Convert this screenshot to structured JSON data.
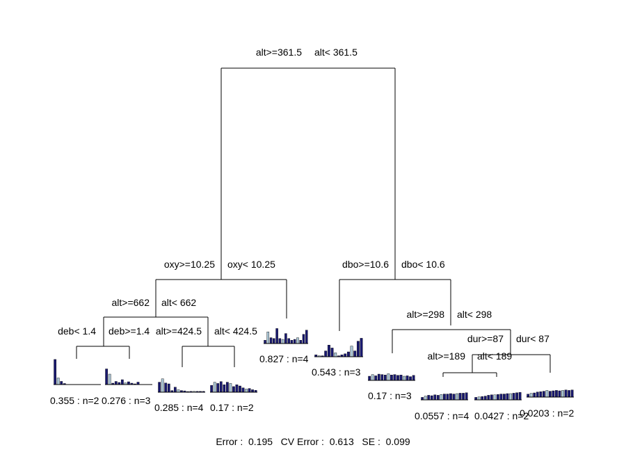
{
  "colors": {
    "bar": "#191970",
    "bar_light": "#a9c4d4",
    "baseline": "#000000"
  },
  "tree": {
    "splits": [
      {
        "id": "root",
        "left_label": "alt>=361.5",
        "right_label": "alt< 361.5"
      },
      {
        "id": "n2",
        "left_label": "oxy>=10.25",
        "right_label": "oxy< 10.25"
      },
      {
        "id": "n3",
        "left_label": "dbo>=10.6",
        "right_label": "dbo< 10.6"
      },
      {
        "id": "n4",
        "left_label": "alt>=662",
        "right_label": "alt< 662"
      },
      {
        "id": "n8",
        "left_label": "deb< 1.4",
        "right_label": "deb>=1.4"
      },
      {
        "id": "n9",
        "left_label": "alt>=424.5",
        "right_label": "alt< 424.5"
      },
      {
        "id": "n7",
        "left_label": "alt>=298",
        "right_label": "alt< 298"
      },
      {
        "id": "n15",
        "left_label": "dur>=87",
        "right_label": "dur< 87"
      },
      {
        "id": "n30",
        "left_label": "alt>=189",
        "right_label": "alt< 189"
      }
    ],
    "leaves": [
      {
        "id": "leaf1",
        "label": "0.355 : n=2",
        "bars": [
          0.95,
          0.25,
          0.12,
          0.04,
          0,
          0,
          0,
          0,
          0,
          0,
          0,
          0,
          0,
          0,
          0
        ]
      },
      {
        "id": "leaf2",
        "label": "0.276 : n=3",
        "bars": [
          0.9,
          0.6,
          0.08,
          0.18,
          0.12,
          0.28,
          0.1,
          0.16,
          0.08,
          0.04,
          0.14,
          0,
          0,
          0,
          0
        ]
      },
      {
        "id": "leaf3",
        "label": "0.285 : n=4",
        "bars": [
          0.6,
          0.8,
          0.55,
          0.5,
          0.1,
          0.3,
          0.15,
          0.1,
          0.08,
          0.04,
          0.05,
          0.05,
          0.05,
          0.05,
          0.05
        ]
      },
      {
        "id": "leaf4",
        "label": "0.17 : n=2",
        "bars": [
          0.55,
          0.8,
          0.7,
          0.85,
          0.6,
          0.8,
          0.7,
          0.45,
          0.6,
          0.5,
          0.35,
          0.25,
          0.3,
          0.2,
          0.15
        ]
      },
      {
        "id": "leaf5",
        "label": "0.827 : n=4",
        "bars": [
          0.2,
          0.7,
          0.35,
          0.3,
          0.9,
          0.3,
          0.25,
          0.6,
          0.3,
          0.2,
          0.25,
          0.35,
          0.2,
          0.55,
          0.8
        ]
      },
      {
        "id": "leaf6",
        "label": "0.543 : n=3",
        "bars": [
          0.1,
          0.05,
          0.05,
          0.3,
          0.6,
          0.45,
          0.2,
          0.05,
          0.1,
          0.15,
          0.25,
          0.55,
          0.3,
          0.8,
          0.95
        ]
      },
      {
        "id": "leaf7",
        "label": "0.17 : n=3",
        "bars": [
          0.5,
          0.7,
          0.55,
          0.75,
          0.7,
          0.65,
          0.8,
          0.65,
          0.7,
          0.6,
          0.65,
          0.5,
          0.55,
          0.45,
          0.6
        ]
      },
      {
        "id": "leaf8",
        "label": "0.0557 : n=4",
        "bars": [
          0.3,
          0.45,
          0.55,
          0.5,
          0.6,
          0.55,
          0.65,
          0.7,
          0.7,
          0.75,
          0.7,
          0.75,
          0.8,
          0.8,
          0.85
        ]
      },
      {
        "id": "leaf9",
        "label": "0.0427 : n=2",
        "bars": [
          0.3,
          0.35,
          0.4,
          0.45,
          0.55,
          0.6,
          0.6,
          0.65,
          0.7,
          0.7,
          0.75,
          0.75,
          0.8,
          0.85,
          0.9
        ]
      },
      {
        "id": "leaf10",
        "label": "0.0203 : n=2",
        "bars": [
          0.35,
          0.45,
          0.5,
          0.6,
          0.65,
          0.7,
          0.8,
          0.7,
          0.75,
          0.8,
          0.75,
          0.8,
          0.85,
          0.8,
          0.85
        ]
      }
    ]
  },
  "footer": {
    "text": "Error :  0.195   CV Error :  0.613   SE :  0.099"
  }
}
